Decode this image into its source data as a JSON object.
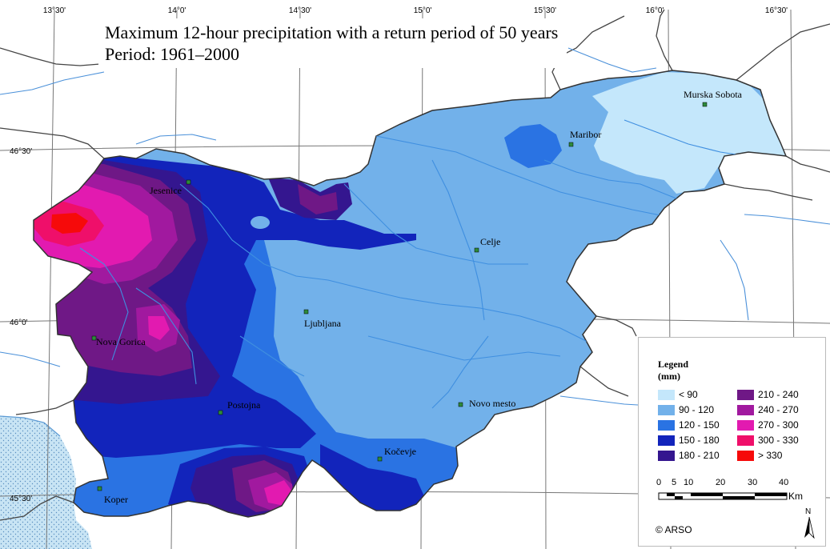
{
  "title": {
    "line1": "Maximum 12-hour precipitation with a return period of 50 years",
    "line2": "Period: 1961–2000"
  },
  "coordinates": {
    "top": [
      "13°30'",
      "14°0'",
      "14°30'",
      "15°0'",
      "15°30'",
      "16°0'",
      "16°30'"
    ],
    "left": [
      "46°30'",
      "46°0'",
      "45°30'"
    ]
  },
  "cities": [
    "Murska Sobota",
    "Maribor",
    "Jesenice",
    "Celje",
    "Ljubljana",
    "Nova Gorica",
    "Novo mesto",
    "Postojna",
    "Kočevje",
    "Koper"
  ],
  "legend": {
    "title": "Legend",
    "unit": "(mm)",
    "classes": [
      {
        "label": "< 90",
        "color": "#c4e7fb"
      },
      {
        "label": "90 - 120",
        "color": "#72b1ea"
      },
      {
        "label": "120 - 150",
        "color": "#2a73e3"
      },
      {
        "label": "150 - 180",
        "color": "#1224bb"
      },
      {
        "label": "180 - 210",
        "color": "#34168f"
      },
      {
        "label": "210 - 240",
        "color": "#6f1886"
      },
      {
        "label": "240 - 270",
        "color": "#a1199f"
      },
      {
        "label": "270 - 300",
        "color": "#e21ab0"
      },
      {
        "label": "300 - 330",
        "color": "#ef0f6a"
      },
      {
        "label": "> 330",
        "color": "#f60a0a"
      }
    ],
    "scale": {
      "ticks": [
        "0",
        "5",
        "10",
        "20",
        "30",
        "40"
      ],
      "unit": "Km"
    },
    "north": "N",
    "copyright": "© ARSO"
  }
}
